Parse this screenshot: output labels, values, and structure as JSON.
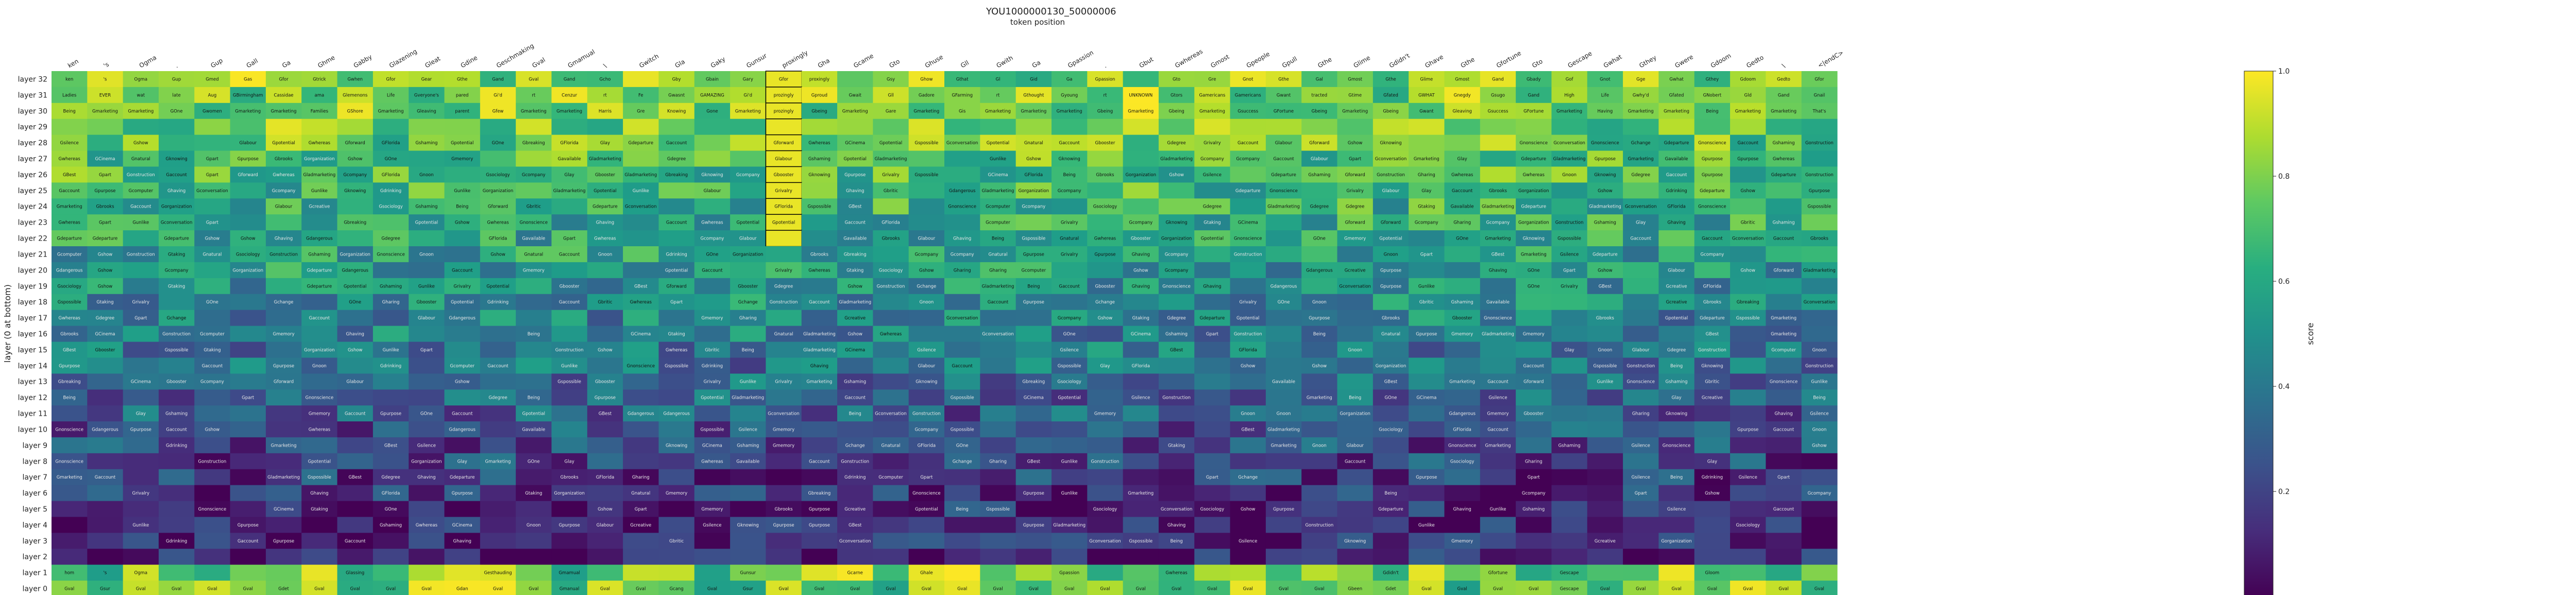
{
  "chart_data": {
    "type": "heatmap",
    "title": "YOU1000000130_50000006",
    "xlabel": "token position",
    "ylabel": "layer (0 at bottom)",
    "colorbar": {
      "label": "score",
      "colormap": "viridis",
      "range": [
        0.0,
        1.0
      ],
      "ticks": [
        "0.2",
        "0.4",
        "0.6",
        "0.8",
        "1.0"
      ]
    },
    "tokens": [
      "ken",
      "'s",
      "Ogma",
      ".",
      "Gup",
      "Gall",
      "Ga",
      "Ghme",
      "Gabby",
      "Glazening",
      "Gleat",
      "Gdine",
      "Geschmaking",
      "Gval",
      "Gmamual",
      "\\",
      "Gwitch",
      "Gla",
      "Gaky",
      "Gunsur",
      "proxingly",
      "Gha",
      "Gcame",
      "Gto",
      "Ghuse",
      "Gll",
      "Gwith",
      "Ga",
      "Gpassion",
      ".",
      "Gbut",
      "Gwhereas",
      "Gmost",
      "Gpeople",
      "Gpull",
      "Gthe",
      "Glime",
      "Gdidn't",
      "Ghave",
      "Gthe",
      "Gfortune",
      "Gto",
      "Gescape",
      "Gwhat",
      "Gthey",
      "Gwere",
      "Gdoom",
      "Gedto",
      "\\",
      "<|endC>"
    ],
    "layers": [
      "layer 32",
      "layer 31",
      "layer 30",
      "layer 29",
      "layer 28",
      "layer 27",
      "layer 26",
      "layer 25",
      "layer 24",
      "layer 23",
      "layer 22",
      "layer 21",
      "layer 20",
      "layer 19",
      "layer 18",
      "layer 17",
      "layer 16",
      "layer 15",
      "layer 14",
      "layer 13",
      "layer 12",
      "layer 11",
      "layer 10",
      "layer 9",
      "layer 8",
      "layer 7",
      "layer 6",
      "layer 5",
      "layer 4",
      "layer 3",
      "layer 2",
      "layer 1",
      "layer 0"
    ],
    "row_seeds": {
      "layer 32": [
        "ken",
        "'s",
        "Ogma",
        "Gup",
        "Gmed",
        "Gas",
        "Gfor",
        "Gtrick",
        "Gwhen",
        "Gfor",
        "Gear",
        "Gthe",
        "Gand",
        "Gval",
        "Gand",
        "Gcho",
        "",
        "Gby",
        "Gbain",
        "Gary",
        "Gfor",
        "proxingly",
        "",
        "Gsy",
        "Ghow",
        "Gthat",
        "Gl",
        "Gid",
        "Ga",
        "Gpassion",
        "",
        "Gto",
        "Gre",
        "Gnot",
        "Gthe",
        "Gal",
        "Gmost",
        "Gthe",
        "Glime",
        "Gmost",
        "Gand",
        "Gbady",
        "Gof",
        "Gnot",
        "Gge",
        "Gwhat",
        "Gthey",
        "Gdoom",
        "Gedto",
        "Gfor"
      ],
      "layer 31": [
        "Ladies",
        "EVER",
        "wat",
        "late",
        "Aug",
        "GBirmingham",
        "Cassidae",
        "ama",
        "Glemenons",
        "Life",
        "Gveryone's",
        "pared",
        "Gi'd",
        "rt",
        "Cenzur",
        "rt",
        "Fe",
        "Gwasnt",
        "GAMAZING",
        "Gi'd",
        "prozingly",
        "Gproud",
        "Gwait",
        "Gll",
        "Gadore",
        "GFarming",
        "rt",
        "Gthought",
        "Gyoung",
        "rt",
        "UNKNOWN",
        "Gtors",
        "Gamericans",
        "Gamericans",
        "Gwant",
        "tracted",
        "Gtime",
        "Gfated",
        "GWHAT",
        "Gnegdy",
        "Gsugo",
        "Gand",
        "High",
        "Life",
        "Gwhy'd",
        "Gfated",
        "GNobert",
        "Gld",
        "Gand",
        "Gnail"
      ],
      "layer 30": [
        "Being",
        "Gmarketing",
        "Gmarketing",
        "GOne",
        "Gwomen",
        "Gmarketing",
        "Gmarketing",
        "Families",
        "GShore",
        "Gmarketing",
        "Gleaving",
        "parent",
        "Gfew",
        "Gmarketing",
        "Gmarketing",
        "Harris",
        "Gre",
        "Knowing",
        "Gone",
        "Gmarketing",
        "prozingly",
        "Gbeing",
        "Gmarketing",
        "Gare",
        "Gmarketing",
        "Gis",
        "Gmarketing",
        "Gmarketing",
        "Gmarketing",
        "Gbeing",
        "Gmarketing",
        "Gbeing",
        "Gmarketing",
        "Gsuccess",
        "GFortune",
        "Gbeing",
        "Gmarketing",
        "Gbeing",
        "Gwant",
        "Gleaving",
        "Gsuccess",
        "GFortune",
        "Gmarketing",
        "Having",
        "Gmarketing",
        "Gmarketing",
        "Being",
        "Gmarketing",
        "Gmarketing",
        "That's"
      ]
    },
    "vocabulary": [
      "Being",
      "Gmarketing",
      "Gorganizational",
      "Gwhereas",
      "Glay",
      "GOne",
      "Gshaming",
      "Gmemory",
      "Gnonscience",
      "Gtaking",
      "Gcomputer",
      "Gshow",
      "Gcompany",
      "Gknowing",
      "Gaccount",
      "Glabour",
      "Gunlike",
      "Gbooster",
      "Gonstruction",
      "Gsociology",
      "Gpurpose",
      "Gspossible",
      "Gharing",
      "Gbrooks",
      "Gdegree",
      "GFlorida",
      "Gpurpose",
      "GCinema",
      "GBest",
      "Gdeparture",
      "Grivalry",
      "Gladmarketing",
      "Gpart",
      "Gpotential",
      "Gbritic",
      "Gcompany",
      "Gdangerous",
      "Gdrinking",
      "Gnatural",
      "Gavailable",
      "Gshow",
      "Gbreaking",
      "Gforward",
      "Gsilence",
      "Gnoon",
      "Gaccount",
      "Ghaving",
      "Gchange",
      "Gcreative",
      "Gconversation"
    ],
    "bottom_rows": {
      "layer 0": [
        "Gval",
        "Gsur",
        "Gval",
        "Gval",
        "Gval",
        "Gval",
        "Gdet",
        "Gval",
        "Gval",
        "Gval",
        "Gval",
        "Gdan",
        "Gval",
        "Gval",
        "Gmanual",
        "Gval",
        "Gval",
        "Gcang",
        "Gval",
        "Gsur",
        "Gval",
        "Gval",
        "Gval",
        "Gval",
        "Gval",
        "Gval",
        "Gval",
        "Gval",
        "Gval",
        "Gval",
        "Gval",
        "Gval",
        "Gval",
        "Gval",
        "Gval",
        "Gval",
        "Gbeen",
        "Gdet",
        "Gval",
        "Gval",
        "Gval",
        "Gval",
        "Gescape",
        "Gval",
        "Gval",
        "Gval",
        "Gval",
        "Gval",
        "Gval",
        "Gval"
      ],
      "layer 1": [
        "hom",
        "'s",
        "Ogma",
        "",
        "",
        "",
        "",
        "",
        "Glassing",
        "",
        "",
        "",
        "Gesthauding",
        "",
        "Gmamual",
        "",
        "",
        "",
        "",
        "Gunsur",
        "",
        "",
        "Gcarne",
        "",
        "Ghale",
        "",
        "",
        "",
        "Gpassion",
        "",
        "",
        "Gwhereas",
        "",
        "",
        "",
        "",
        "",
        "Gdidn't",
        "",
        "",
        "Gfortune",
        "",
        "Gescape",
        "",
        "",
        "",
        "Gloom",
        "",
        "",
        ""
      ]
    }
  }
}
